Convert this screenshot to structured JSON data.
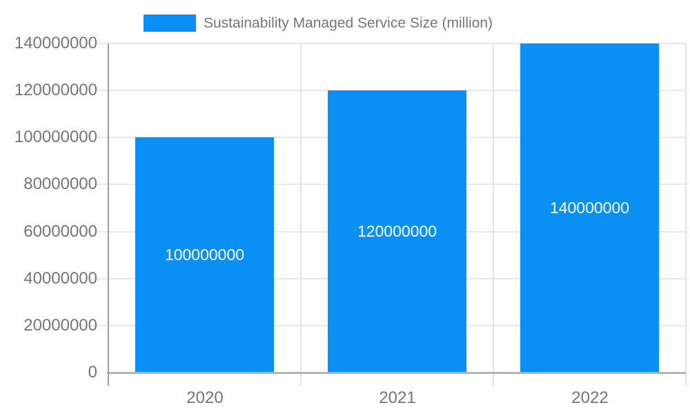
{
  "chart_data": {
    "type": "bar",
    "title": "",
    "legend": {
      "label": "Sustainability Managed Service Size (million)",
      "position": "top"
    },
    "categories": [
      "2020",
      "2021",
      "2022"
    ],
    "series": [
      {
        "name": "Sustainability Managed Service Size (million)",
        "values": [
          100000000,
          120000000,
          140000000
        ]
      }
    ],
    "value_labels": [
      "100000000",
      "120000000",
      "140000000"
    ],
    "y_ticks": [
      0,
      20000000,
      40000000,
      60000000,
      80000000,
      100000000,
      120000000,
      140000000
    ],
    "ylim": [
      0,
      140000000
    ],
    "xlabel": "",
    "ylabel": "",
    "grid": true,
    "colors": {
      "bar": "#0a90f4",
      "value_label_text": "#ffffff",
      "axis_text": "#757575",
      "gridline": "#e7e7e7",
      "axis_line": "#9d9d9d",
      "baseline": "#b3b3b3",
      "background": "#ffffff"
    }
  }
}
